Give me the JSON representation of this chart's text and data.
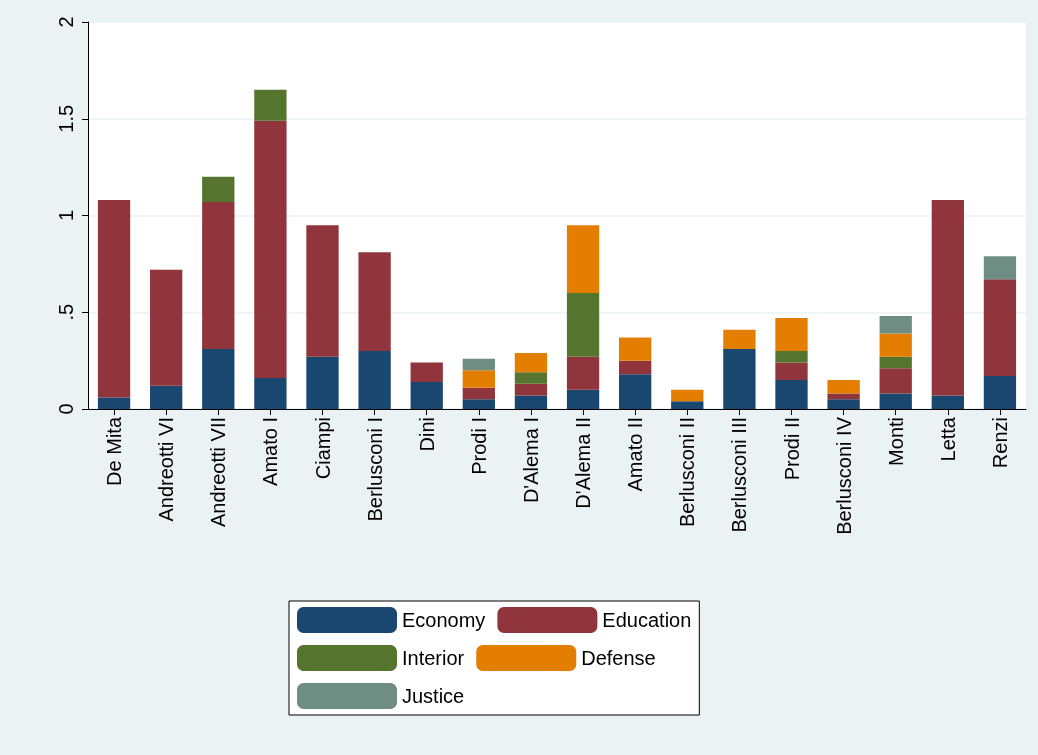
{
  "chart_data": {
    "type": "bar",
    "stacked": true,
    "categories": [
      "De Mita",
      "Andreotti VI",
      "Andreotti VII",
      "Amato I",
      "Ciampi",
      "Berlusconi I",
      "Dini",
      "Prodi I",
      "D'Alema I",
      "D'Alema II",
      "Amato II",
      "Berlusconi II",
      "Berlusconi III",
      "Prodi II",
      "Berlusconi IV",
      "Monti",
      "Letta",
      "Renzi"
    ],
    "series": [
      {
        "name": "Economy",
        "color": "#1a476f",
        "values": [
          0.06,
          0.12,
          0.31,
          0.16,
          0.27,
          0.3,
          0.14,
          0.05,
          0.07,
          0.1,
          0.18,
          0.04,
          0.31,
          0.15,
          0.05,
          0.08,
          0.07,
          0.17
        ]
      },
      {
        "name": "Education",
        "color": "#90353b",
        "values": [
          1.02,
          0.6,
          0.76,
          1.33,
          0.68,
          0.51,
          0.1,
          0.06,
          0.06,
          0.17,
          0.07,
          0,
          0,
          0.09,
          0.03,
          0.13,
          1.01,
          0.5
        ]
      },
      {
        "name": "Interior",
        "color": "#55752f",
        "values": [
          0,
          0,
          0.13,
          0.16,
          0,
          0,
          0,
          0,
          0.06,
          0.33,
          0,
          0,
          0,
          0.06,
          0,
          0.06,
          0,
          0
        ]
      },
      {
        "name": "Defense",
        "color": "#e37e00",
        "values": [
          0,
          0,
          0,
          0,
          0,
          0,
          0,
          0.09,
          0.1,
          0.35,
          0.12,
          0.06,
          0.1,
          0.17,
          0.07,
          0.12,
          0,
          0
        ]
      },
      {
        "name": "Justice",
        "color": "#6e8e84",
        "values": [
          0,
          0,
          0,
          0,
          0,
          0,
          0,
          0.06,
          0,
          0,
          0,
          0,
          0,
          0,
          0,
          0.09,
          0,
          0.12
        ]
      }
    ],
    "ylim": [
      0,
      2
    ],
    "yticks": [
      {
        "value": 0,
        "label": "0"
      },
      {
        "value": 0.5,
        "label": ".5"
      },
      {
        "value": 1,
        "label": "1"
      },
      {
        "value": 1.5,
        "label": "1.5"
      },
      {
        "value": 2,
        "label": "2"
      }
    ],
    "grid": "y",
    "legend": "bottom"
  }
}
